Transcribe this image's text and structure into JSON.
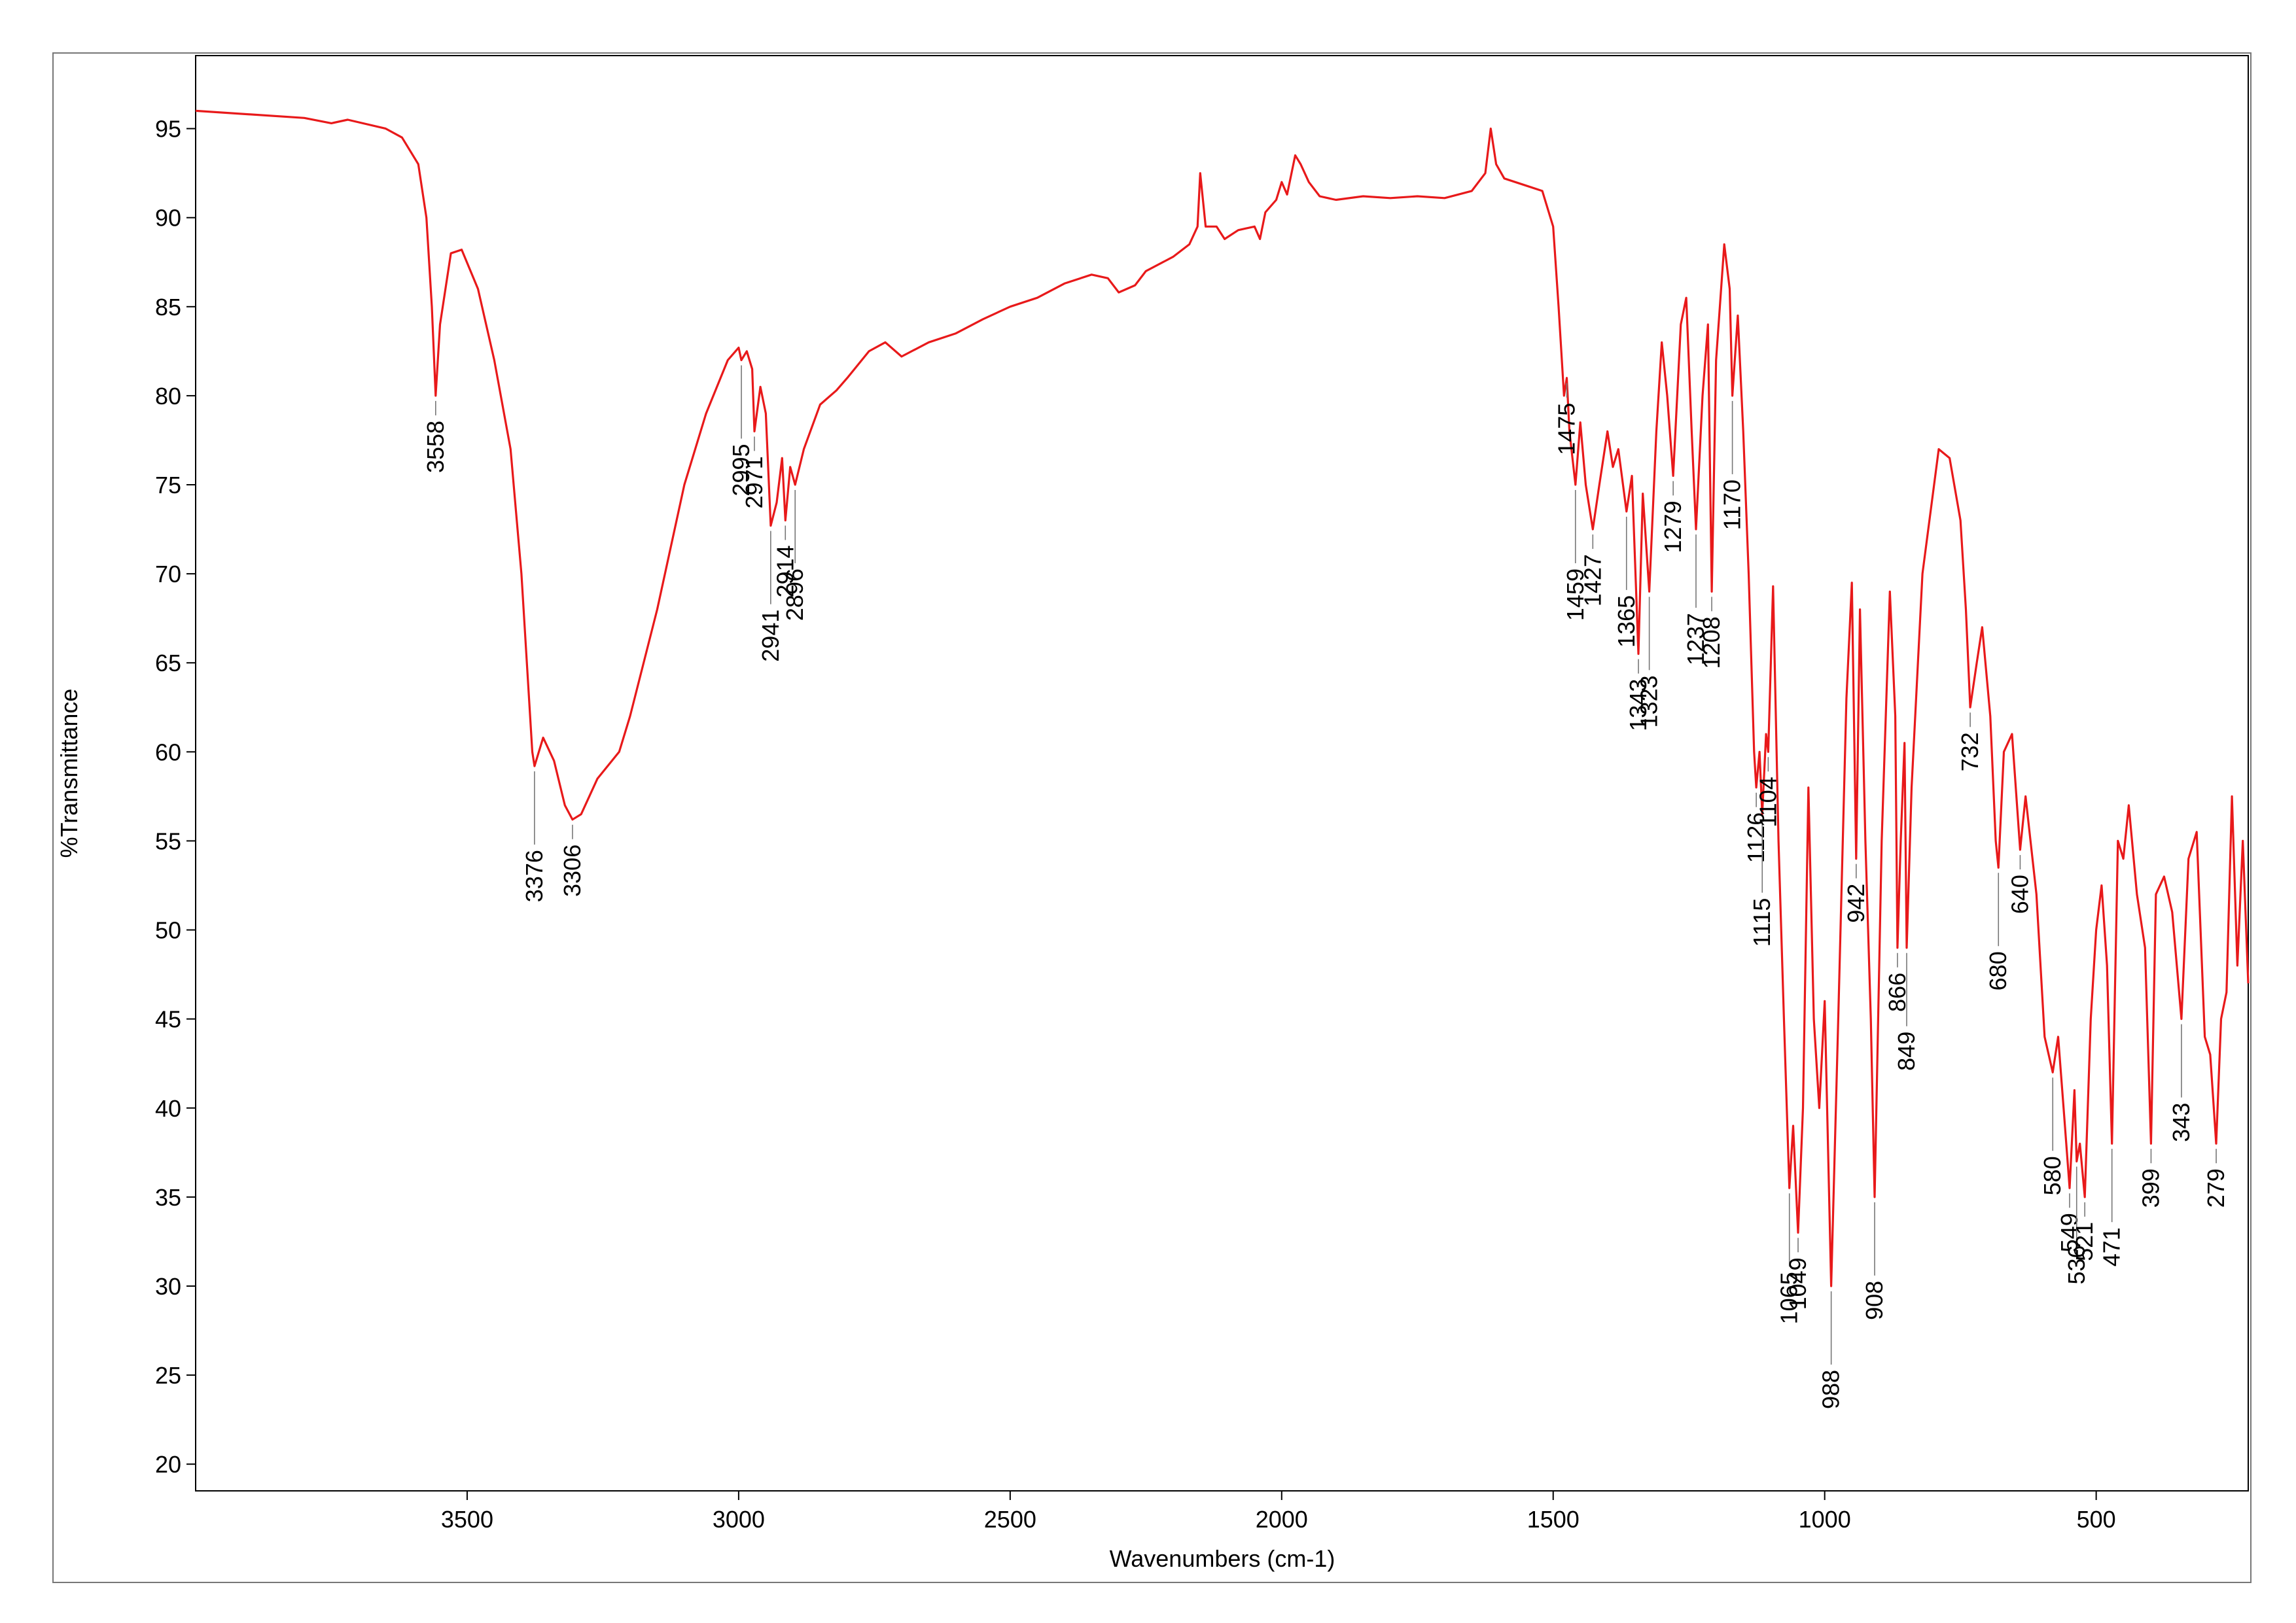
{
  "chart_data": {
    "type": "line",
    "x_label": "Wavenumbers (cm-1)",
    "y_label": "%Transmittance",
    "xlim": [
      4000,
      220
    ],
    "ylim": [
      18.5,
      99.1
    ],
    "xticks": [
      3500,
      3000,
      2500,
      2000,
      1500,
      1000,
      500
    ],
    "yticks": [
      20,
      25,
      30,
      35,
      40,
      45,
      50,
      55,
      60,
      65,
      70,
      75,
      80,
      85,
      90,
      95
    ],
    "color": "#e8191a",
    "x": [
      4000,
      3800,
      3750,
      3720,
      3650,
      3620,
      3590,
      3575,
      3565,
      3558,
      3550,
      3530,
      3510,
      3480,
      3450,
      3420,
      3400,
      3390,
      3380,
      3376,
      3360,
      3340,
      3320,
      3306,
      3290,
      3260,
      3220,
      3200,
      3150,
      3100,
      3060,
      3020,
      3000,
      2995,
      2985,
      2975,
      2971,
      2960,
      2950,
      2941,
      2930,
      2920,
      2914,
      2905,
      2896,
      2880,
      2850,
      2820,
      2800,
      2760,
      2730,
      2700,
      2650,
      2600,
      2550,
      2500,
      2450,
      2400,
      2350,
      2320,
      2300,
      2270,
      2250,
      2200,
      2170,
      2155,
      2150,
      2140,
      2120,
      2105,
      2080,
      2050,
      2040,
      2030,
      2010,
      2000,
      1990,
      1975,
      1965,
      1950,
      1930,
      1900,
      1850,
      1800,
      1750,
      1700,
      1650,
      1625,
      1615,
      1605,
      1590,
      1550,
      1520,
      1500,
      1490,
      1480,
      1475,
      1470,
      1459,
      1450,
      1440,
      1427,
      1415,
      1400,
      1390,
      1380,
      1365,
      1355,
      1343,
      1335,
      1323,
      1310,
      1300,
      1290,
      1279,
      1265,
      1255,
      1245,
      1237,
      1225,
      1215,
      1208,
      1200,
      1185,
      1175,
      1170,
      1160,
      1150,
      1140,
      1130,
      1126,
      1120,
      1115,
      1108,
      1104,
      1095,
      1085,
      1075,
      1065,
      1058,
      1049,
      1040,
      1030,
      1020,
      1010,
      1000,
      988,
      975,
      960,
      950,
      942,
      935,
      925,
      915,
      908,
      895,
      880,
      870,
      866,
      860,
      853,
      849,
      840,
      820,
      790,
      770,
      750,
      740,
      732,
      720,
      710,
      695,
      685,
      680,
      670,
      655,
      640,
      630,
      610,
      595,
      580,
      570,
      560,
      549,
      540,
      536,
      530,
      521,
      510,
      500,
      490,
      480,
      471,
      460,
      450,
      440,
      425,
      410,
      399,
      390,
      375,
      360,
      343,
      330,
      315,
      300,
      290,
      279,
      270,
      260,
      250,
      240,
      230,
      220
    ],
    "values": [
      96,
      95.6,
      95.3,
      95.5,
      95,
      94.5,
      93,
      90,
      85,
      80,
      84,
      88,
      88.2,
      86,
      82,
      77,
      70,
      65,
      60,
      59.2,
      60.8,
      59.5,
      57,
      56.2,
      56.5,
      58.5,
      60,
      62,
      68,
      75,
      79,
      82,
      82.7,
      82,
      82.5,
      81.5,
      78,
      80.5,
      79,
      72.7,
      74,
      76.5,
      73,
      76,
      75,
      77,
      79.5,
      80.3,
      81,
      82.5,
      83,
      82.2,
      83,
      83.5,
      84.3,
      85,
      85.5,
      86.3,
      86.8,
      86.6,
      85.8,
      86.2,
      87,
      87.8,
      88.5,
      89.5,
      92.5,
      89.5,
      89.5,
      88.8,
      89.3,
      89.5,
      88.8,
      90.3,
      91,
      92,
      91.3,
      93.5,
      93,
      92,
      91.2,
      91,
      91.2,
      91.1,
      91.2,
      91.1,
      91.5,
      92.5,
      95,
      93,
      92.2,
      91.8,
      91.5,
      89.5,
      85,
      80,
      81,
      78,
      75,
      78.5,
      75,
      72.5,
      75,
      78,
      76,
      77,
      73.5,
      75.5,
      65.5,
      74.5,
      69,
      78,
      83,
      80,
      75.5,
      84,
      85.5,
      78,
      72.5,
      80,
      84,
      69,
      82,
      88.5,
      86,
      80,
      84.5,
      78,
      70,
      60,
      58,
      60,
      56.5,
      61,
      60,
      69.3,
      55,
      45,
      35.5,
      39,
      33,
      40,
      58,
      45,
      40,
      46,
      30,
      45,
      63,
      69.5,
      54,
      68,
      55,
      45,
      35,
      55,
      69,
      62,
      49,
      55,
      60.5,
      49,
      58,
      70,
      77,
      76.5,
      73,
      68,
      62.5,
      65,
      67,
      62,
      55,
      53.5,
      60,
      61,
      54.5,
      57.5,
      52,
      44,
      42,
      44,
      40,
      35.5,
      41,
      37,
      38,
      35,
      45,
      50,
      52.5,
      48,
      38,
      55,
      54,
      57,
      52,
      49,
      38,
      52,
      53,
      51,
      45,
      54,
      55.5,
      44,
      43,
      38,
      45,
      46.5,
      57.5,
      48,
      55,
      47
    ],
    "peak_labels": [
      3558,
      3376,
      3306,
      2995,
      2971,
      2941,
      2914,
      2896,
      1475,
      1459,
      1427,
      1365,
      1343,
      1323,
      1279,
      1237,
      1208,
      1170,
      1126,
      1115,
      1104,
      1065,
      1049,
      988,
      942,
      908,
      866,
      849,
      732,
      680,
      640,
      580,
      549,
      536,
      521,
      471,
      399,
      343,
      279
    ]
  }
}
